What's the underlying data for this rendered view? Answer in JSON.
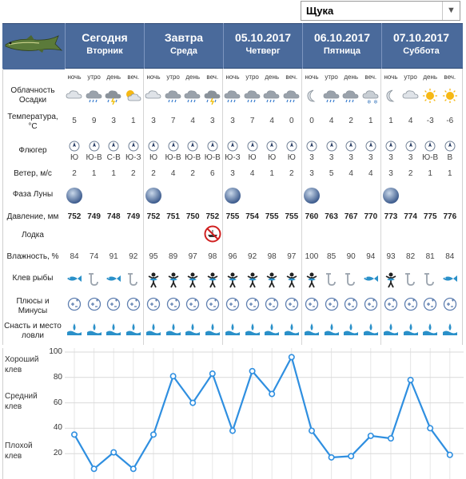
{
  "species_select": {
    "value": "Щука"
  },
  "days": [
    {
      "title": "Сегодня",
      "weekday": "Вторник"
    },
    {
      "title": "Завтра",
      "weekday": "Среда"
    },
    {
      "title": "05.10.2017",
      "weekday": "Четверг"
    },
    {
      "title": "06.10.2017",
      "weekday": "Пятница"
    },
    {
      "title": "07.10.2017",
      "weekday": "Суббота"
    }
  ],
  "times_of_day": [
    "ночь",
    "утро",
    "день",
    "веч."
  ],
  "row_labels": {
    "cloudiness": "Облачность\nОсадки",
    "temperature": "Температура,\n°C",
    "vane": "Флюгер",
    "wind": "Ветер, м/с",
    "moon": "Фаза Луны",
    "pressure": "Давление, мм",
    "boat": "Лодка",
    "humidity": "Влажность, %",
    "bite": "Клев рыбы",
    "pluses": "Плюсы и\nМинусы",
    "tackle": "Снасть и место\nловли"
  },
  "cloudiness_icons": [
    "cloud-icon",
    "rain-icon",
    "storm-icon",
    "sun-cloud-icon",
    "cloud-icon",
    "rain-icon",
    "rain-icon",
    "storm-icon",
    "rain-icon",
    "rain-icon",
    "rain-icon",
    "rain-icon",
    "moon-icon",
    "rain-icon",
    "rain-icon",
    "snow-icon",
    "moon-icon",
    "cloud-icon",
    "sun-icon",
    "sun-icon"
  ],
  "temperature": [
    "5",
    "9",
    "3",
    "1",
    "3",
    "7",
    "4",
    "3",
    "3",
    "7",
    "4",
    "0",
    "0",
    "4",
    "2",
    "1",
    "1",
    "4",
    "-3",
    "-6"
  ],
  "wind_dir": [
    "Ю",
    "Ю-В",
    "С-В",
    "Ю-З",
    "Ю",
    "Ю-В",
    "Ю-В",
    "Ю-В",
    "Ю-З",
    "Ю",
    "Ю",
    "Ю",
    "3",
    "3",
    "3",
    "3",
    "3",
    "3",
    "Ю-В",
    "В"
  ],
  "wind_speed": [
    "2",
    "1",
    "1",
    "2",
    "2",
    "4",
    "2",
    "6",
    "3",
    "4",
    "1",
    "2",
    "3",
    "5",
    "4",
    "4",
    "3",
    "2",
    "1",
    "1"
  ],
  "moon_days": [
    true,
    true,
    true,
    true,
    true
  ],
  "pressure": [
    "752",
    "749",
    "748",
    "749",
    "752",
    "751",
    "750",
    "752",
    "755",
    "754",
    "755",
    "755",
    "760",
    "763",
    "767",
    "770",
    "773",
    "774",
    "775",
    "776"
  ],
  "boat_warning_index": 7,
  "humidity": [
    "84",
    "74",
    "91",
    "92",
    "95",
    "89",
    "97",
    "98",
    "96",
    "92",
    "98",
    "97",
    "100",
    "85",
    "90",
    "94",
    "93",
    "82",
    "81",
    "84"
  ],
  "bite_icons": [
    "fish",
    "hook",
    "fish",
    "hook",
    "fisher",
    "fisher",
    "fisher",
    "fisher",
    "fisher",
    "fisher",
    "fisher",
    "fisher",
    "fisher",
    "hook",
    "hook",
    "fish",
    "fisher",
    "hook",
    "hook",
    "fish"
  ],
  "chart_data": {
    "type": "line",
    "ylim": [
      0,
      100
    ],
    "yticks": [
      "100",
      "80",
      "60",
      "40",
      "20"
    ],
    "bands": [
      {
        "name": "Хороший\nклев"
      },
      {
        "name": "Средний\nклев"
      },
      {
        "name": "Плохой\nклев"
      }
    ],
    "x": [
      1,
      2,
      3,
      4,
      5,
      6,
      7,
      8,
      9,
      10,
      11,
      12,
      13,
      14,
      15,
      16,
      17,
      18,
      19,
      20
    ],
    "values": [
      35,
      8,
      21,
      8,
      35,
      81,
      60,
      83,
      38,
      85,
      67,
      96,
      38,
      17,
      18,
      34,
      32,
      78,
      40,
      19
    ],
    "color": "#2f8fe0"
  },
  "colors": {
    "header": "#4a6a9b",
    "line": "#2f8fe0",
    "icon": "#2a90c9"
  }
}
